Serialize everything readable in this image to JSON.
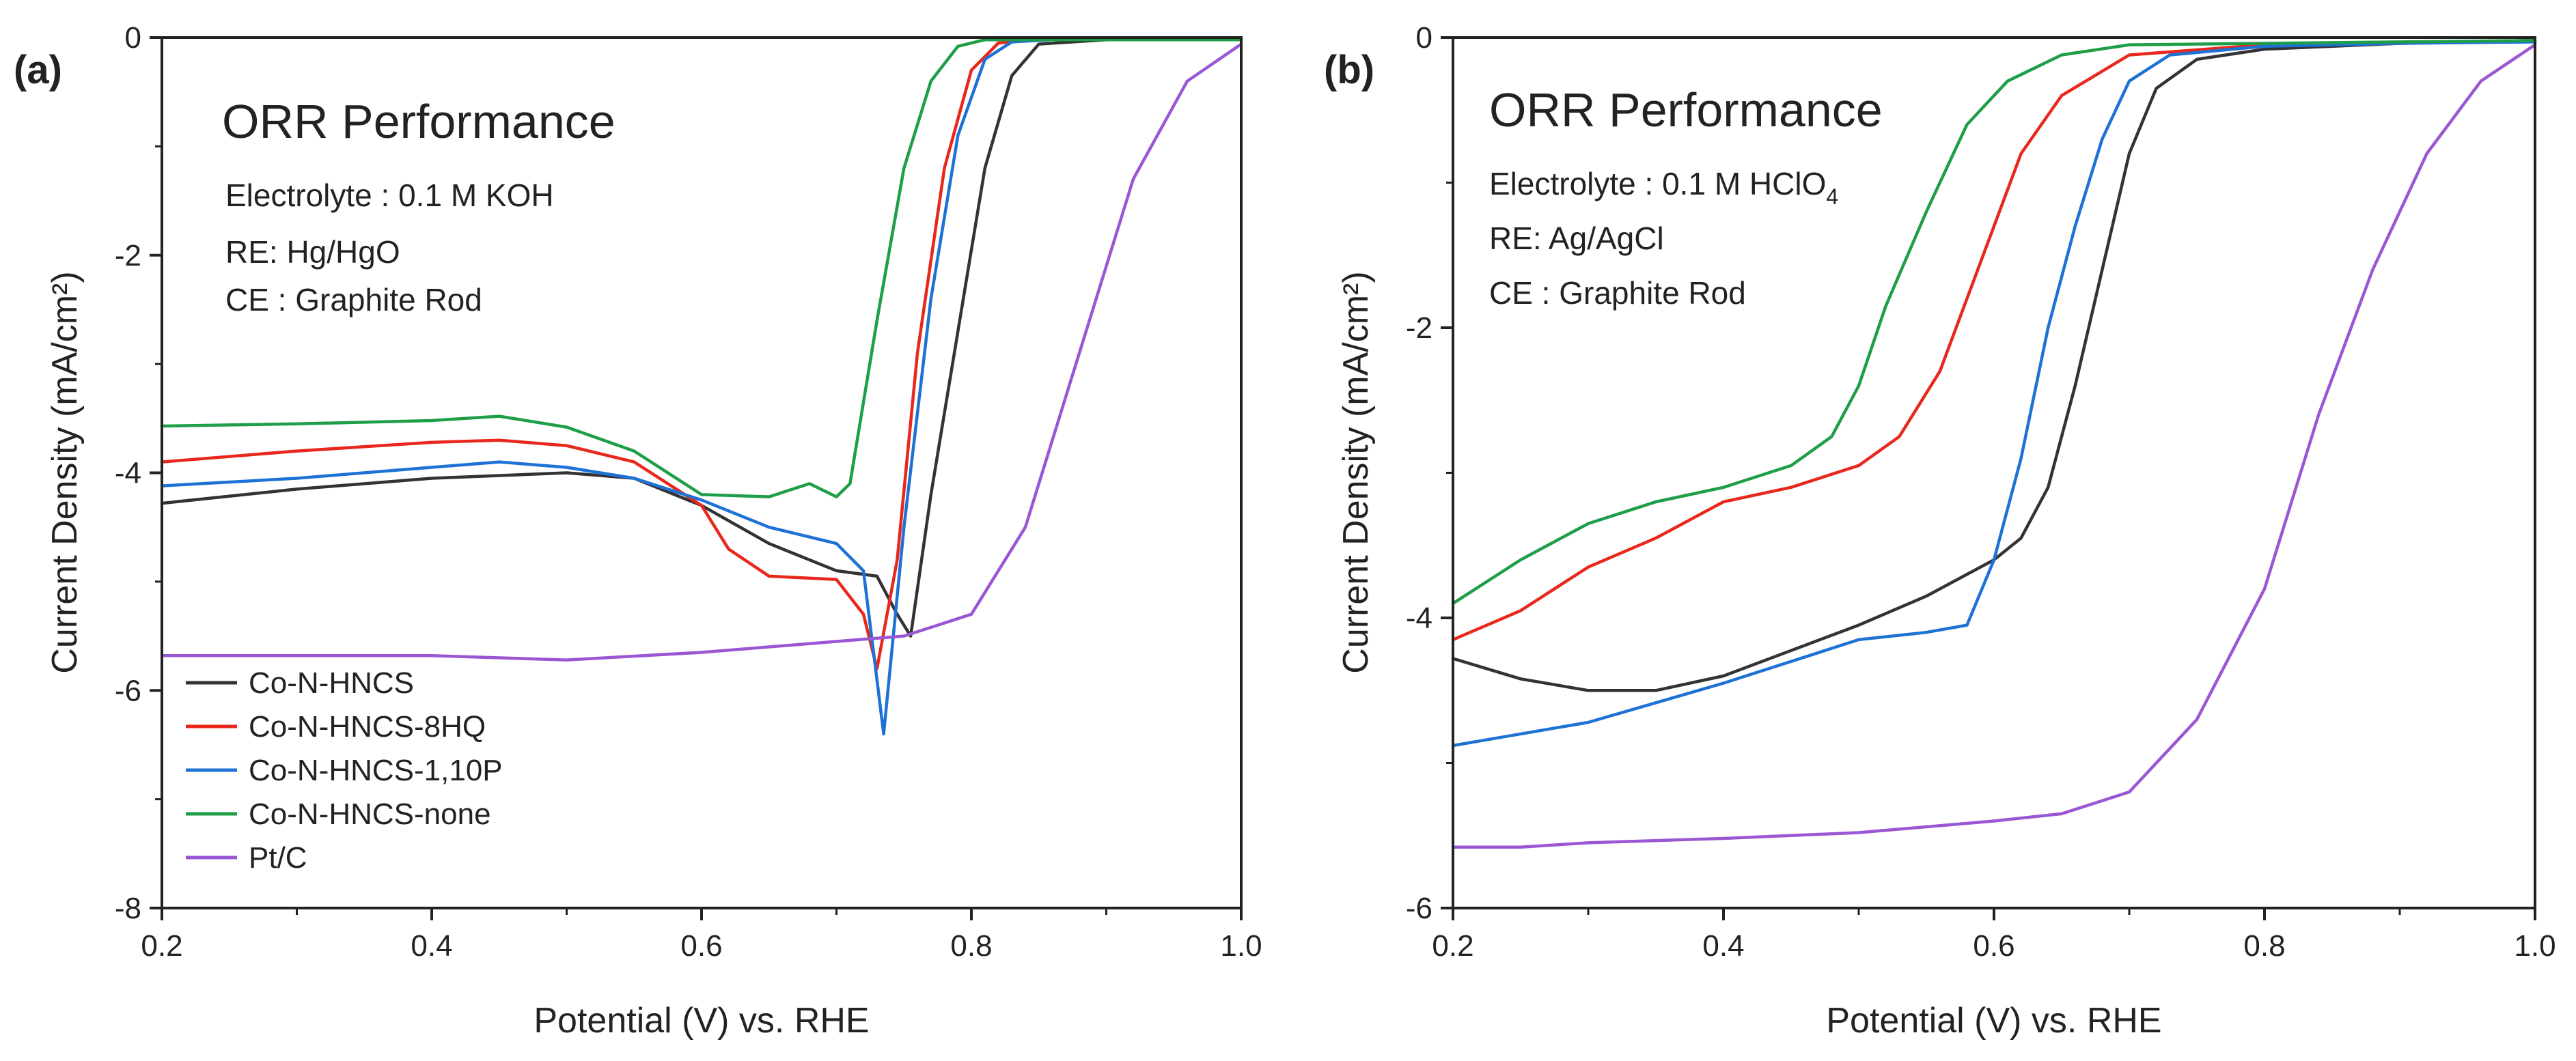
{
  "chart_data": [
    {
      "panel_label": "(a)",
      "type": "line",
      "title": "ORR Performance",
      "annotations": [
        "Electrolyte : 0.1 M KOH",
        "RE: Hg/HgO",
        "CE : Graphite Rod"
      ],
      "xlabel": "Potential (V) vs. RHE",
      "ylabel": "Current Density (mA/cm²)",
      "xlim": [
        0.2,
        1.0
      ],
      "ylim": [
        -8,
        0
      ],
      "xticks": [
        0.2,
        0.4,
        0.6,
        0.8,
        1.0
      ],
      "xtick_labels": [
        "0.2",
        "0.4",
        "0.6",
        "0.8",
        "1.0"
      ],
      "yticks": [
        0,
        -2,
        -4,
        -6,
        -8
      ],
      "ytick_labels": [
        "0",
        "-2",
        "-4",
        "-6",
        "-8"
      ],
      "legend_position": "bottom-left",
      "series": [
        {
          "name": "Co-N-HNCS",
          "color": "#333333",
          "points": [
            [
              0.2,
              -4.28
            ],
            [
              0.3,
              -4.15
            ],
            [
              0.4,
              -4.05
            ],
            [
              0.5,
              -4.0
            ],
            [
              0.55,
              -4.05
            ],
            [
              0.6,
              -4.3
            ],
            [
              0.65,
              -4.65
            ],
            [
              0.7,
              -4.9
            ],
            [
              0.73,
              -4.95
            ],
            [
              0.745,
              -5.3
            ],
            [
              0.755,
              -5.5
            ],
            [
              0.77,
              -4.2
            ],
            [
              0.79,
              -2.7
            ],
            [
              0.81,
              -1.2
            ],
            [
              0.83,
              -0.35
            ],
            [
              0.85,
              -0.06
            ],
            [
              0.9,
              -0.02
            ],
            [
              1.0,
              -0.02
            ]
          ]
        },
        {
          "name": "Co-N-HNCS-8HQ",
          "color": "#e8281c",
          "points": [
            [
              0.2,
              -3.9
            ],
            [
              0.3,
              -3.8
            ],
            [
              0.4,
              -3.72
            ],
            [
              0.45,
              -3.7
            ],
            [
              0.5,
              -3.75
            ],
            [
              0.55,
              -3.9
            ],
            [
              0.6,
              -4.3
            ],
            [
              0.62,
              -4.7
            ],
            [
              0.65,
              -4.95
            ],
            [
              0.7,
              -4.98
            ],
            [
              0.72,
              -5.3
            ],
            [
              0.73,
              -5.8
            ],
            [
              0.745,
              -4.8
            ],
            [
              0.76,
              -2.9
            ],
            [
              0.78,
              -1.2
            ],
            [
              0.8,
              -0.3
            ],
            [
              0.82,
              -0.05
            ],
            [
              0.85,
              -0.02
            ],
            [
              1.0,
              -0.02
            ]
          ]
        },
        {
          "name": "Co-N-HNCS-1,10P",
          "color": "#1e72d6",
          "points": [
            [
              0.2,
              -4.12
            ],
            [
              0.3,
              -4.05
            ],
            [
              0.4,
              -3.95
            ],
            [
              0.45,
              -3.9
            ],
            [
              0.5,
              -3.95
            ],
            [
              0.55,
              -4.05
            ],
            [
              0.6,
              -4.25
            ],
            [
              0.65,
              -4.5
            ],
            [
              0.7,
              -4.65
            ],
            [
              0.72,
              -4.9
            ],
            [
              0.735,
              -6.4
            ],
            [
              0.75,
              -4.5
            ],
            [
              0.77,
              -2.4
            ],
            [
              0.79,
              -0.9
            ],
            [
              0.81,
              -0.2
            ],
            [
              0.83,
              -0.04
            ],
            [
              0.86,
              -0.02
            ],
            [
              1.0,
              -0.02
            ]
          ]
        },
        {
          "name": "Co-N-HNCS-none",
          "color": "#1f9e48",
          "points": [
            [
              0.2,
              -3.57
            ],
            [
              0.3,
              -3.55
            ],
            [
              0.4,
              -3.52
            ],
            [
              0.45,
              -3.48
            ],
            [
              0.5,
              -3.58
            ],
            [
              0.55,
              -3.8
            ],
            [
              0.6,
              -4.2
            ],
            [
              0.65,
              -4.22
            ],
            [
              0.68,
              -4.1
            ],
            [
              0.7,
              -4.22
            ],
            [
              0.71,
              -4.1
            ],
            [
              0.73,
              -2.6
            ],
            [
              0.75,
              -1.2
            ],
            [
              0.77,
              -0.4
            ],
            [
              0.79,
              -0.08
            ],
            [
              0.81,
              -0.02
            ],
            [
              1.0,
              -0.02
            ]
          ]
        },
        {
          "name": "Pt/C",
          "color": "#9b57d3",
          "points": [
            [
              0.2,
              -5.68
            ],
            [
              0.3,
              -5.68
            ],
            [
              0.4,
              -5.68
            ],
            [
              0.5,
              -5.72
            ],
            [
              0.6,
              -5.65
            ],
            [
              0.7,
              -5.55
            ],
            [
              0.75,
              -5.5
            ],
            [
              0.8,
              -5.3
            ],
            [
              0.84,
              -4.5
            ],
            [
              0.88,
              -2.9
            ],
            [
              0.92,
              -1.3
            ],
            [
              0.96,
              -0.4
            ],
            [
              1.0,
              -0.06
            ]
          ]
        }
      ]
    },
    {
      "panel_label": "(b)",
      "type": "line",
      "title": "ORR Performance",
      "annotations": [
        "Electrolyte : 0.1 M HClO",
        "4",
        "RE: Ag/AgCl",
        "CE : Graphite Rod"
      ],
      "xlabel": "Potential (V) vs. RHE",
      "ylabel": "Current Density (mA/cm²)",
      "xlim": [
        0.2,
        1.0
      ],
      "ylim": [
        -6,
        0
      ],
      "xticks": [
        0.2,
        0.4,
        0.6,
        0.8,
        1.0
      ],
      "xtick_labels": [
        "0.2",
        "0.4",
        "0.6",
        "0.8",
        "1.0"
      ],
      "yticks": [
        0,
        -2,
        -4,
        -6
      ],
      "ytick_labels": [
        "0",
        "-2",
        "-4",
        "-6"
      ],
      "series": [
        {
          "name": "Co-N-HNCS",
          "color": "#333333",
          "points": [
            [
              0.2,
              -4.28
            ],
            [
              0.25,
              -4.42
            ],
            [
              0.3,
              -4.5
            ],
            [
              0.35,
              -4.5
            ],
            [
              0.4,
              -4.4
            ],
            [
              0.5,
              -4.05
            ],
            [
              0.55,
              -3.85
            ],
            [
              0.6,
              -3.6
            ],
            [
              0.62,
              -3.45
            ],
            [
              0.64,
              -3.1
            ],
            [
              0.66,
              -2.4
            ],
            [
              0.68,
              -1.6
            ],
            [
              0.7,
              -0.8
            ],
            [
              0.72,
              -0.35
            ],
            [
              0.75,
              -0.15
            ],
            [
              0.8,
              -0.08
            ],
            [
              0.9,
              -0.04
            ],
            [
              1.0,
              -0.02
            ]
          ]
        },
        {
          "name": "Co-N-HNCS-8HQ",
          "color": "#e8281c",
          "points": [
            [
              0.2,
              -4.15
            ],
            [
              0.25,
              -3.95
            ],
            [
              0.3,
              -3.65
            ],
            [
              0.35,
              -3.45
            ],
            [
              0.4,
              -3.2
            ],
            [
              0.45,
              -3.1
            ],
            [
              0.5,
              -2.95
            ],
            [
              0.53,
              -2.75
            ],
            [
              0.56,
              -2.3
            ],
            [
              0.58,
              -1.8
            ],
            [
              0.6,
              -1.3
            ],
            [
              0.62,
              -0.8
            ],
            [
              0.65,
              -0.4
            ],
            [
              0.7,
              -0.12
            ],
            [
              0.8,
              -0.05
            ],
            [
              1.0,
              -0.02
            ]
          ]
        },
        {
          "name": "Co-N-HNCS-1,10P",
          "color": "#1e72d6",
          "points": [
            [
              0.2,
              -4.88
            ],
            [
              0.3,
              -4.72
            ],
            [
              0.4,
              -4.45
            ],
            [
              0.5,
              -4.15
            ],
            [
              0.55,
              -4.1
            ],
            [
              0.58,
              -4.05
            ],
            [
              0.6,
              -3.6
            ],
            [
              0.62,
              -2.9
            ],
            [
              0.64,
              -2.0
            ],
            [
              0.66,
              -1.3
            ],
            [
              0.68,
              -0.7
            ],
            [
              0.7,
              -0.3
            ],
            [
              0.73,
              -0.12
            ],
            [
              0.8,
              -0.06
            ],
            [
              0.9,
              -0.04
            ],
            [
              1.0,
              -0.03
            ]
          ]
        },
        {
          "name": "Co-N-HNCS-none",
          "color": "#1f9e48",
          "points": [
            [
              0.2,
              -3.9
            ],
            [
              0.25,
              -3.6
            ],
            [
              0.28,
              -3.45
            ],
            [
              0.3,
              -3.35
            ],
            [
              0.35,
              -3.2
            ],
            [
              0.4,
              -3.1
            ],
            [
              0.45,
              -2.95
            ],
            [
              0.48,
              -2.75
            ],
            [
              0.5,
              -2.4
            ],
            [
              0.52,
              -1.85
            ],
            [
              0.55,
              -1.2
            ],
            [
              0.58,
              -0.6
            ],
            [
              0.61,
              -0.3
            ],
            [
              0.65,
              -0.12
            ],
            [
              0.7,
              -0.05
            ],
            [
              1.0,
              -0.02
            ]
          ]
        },
        {
          "name": "Pt/C",
          "color": "#9b57d3",
          "points": [
            [
              0.2,
              -5.58
            ],
            [
              0.25,
              -5.58
            ],
            [
              0.3,
              -5.55
            ],
            [
              0.4,
              -5.52
            ],
            [
              0.5,
              -5.48
            ],
            [
              0.6,
              -5.4
            ],
            [
              0.65,
              -5.35
            ],
            [
              0.7,
              -5.2
            ],
            [
              0.75,
              -4.7
            ],
            [
              0.8,
              -3.8
            ],
            [
              0.84,
              -2.6
            ],
            [
              0.88,
              -1.6
            ],
            [
              0.92,
              -0.8
            ],
            [
              0.96,
              -0.3
            ],
            [
              1.0,
              -0.05
            ]
          ]
        }
      ]
    }
  ]
}
